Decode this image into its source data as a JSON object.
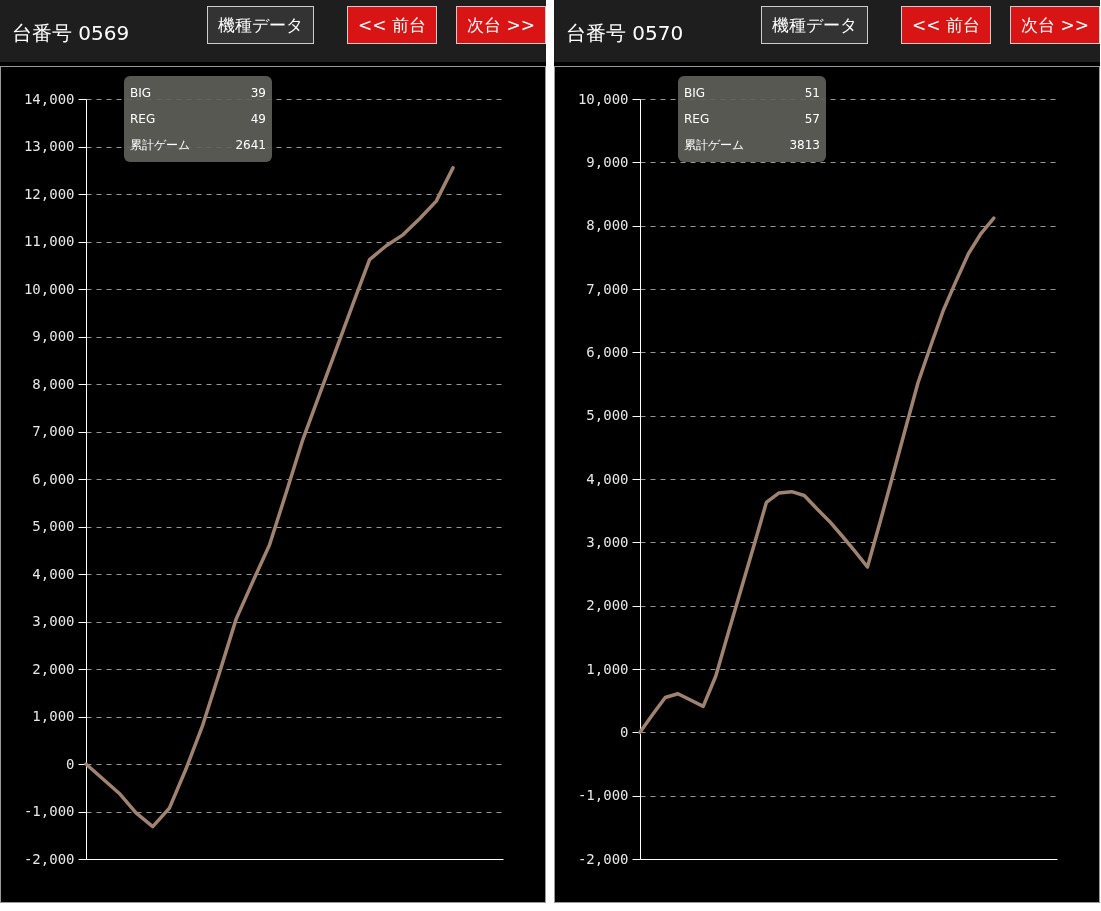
{
  "chart_data": [
    {
      "type": "line",
      "title": "台番号 0569",
      "annotations": [
        "機種データ",
        "<< 前台",
        "次台 >>",
        "BIG",
        "39",
        "REG",
        "49",
        "累計ゲーム",
        "2641"
      ],
      "categories": [
        null,
        null,
        null,
        null,
        null,
        null,
        null,
        null,
        null,
        null,
        null,
        null,
        null,
        null,
        null,
        null,
        null,
        null,
        null,
        null,
        null,
        null,
        null,
        null,
        null,
        null
      ],
      "series": [
        {
          "color": "#a08270",
          "values": [
            0,
            -310,
            -620,
            -1030,
            -1320,
            -930,
            -100,
            820,
            1920,
            3050,
            3840,
            4610,
            5710,
            6830,
            7780,
            8730,
            9680,
            10620,
            10910,
            11140,
            11480,
            11850,
            12550,
            null,
            null,
            null
          ]
        }
      ],
      "ylim": [
        -2000,
        14000
      ],
      "yticks": [
        {
          "value": -2000,
          "label": "-2,000"
        },
        {
          "value": -1000,
          "label": "-1,000"
        },
        0,
        {
          "value": 1000,
          "label": "1,000"
        },
        {
          "value": 2000,
          "label": "2,000"
        },
        {
          "value": 3000,
          "label": "3,000"
        },
        {
          "value": 4000,
          "label": "4,000"
        },
        {
          "value": 5000,
          "label": "5,000"
        },
        {
          "value": 6000,
          "label": "6,000"
        },
        {
          "value": 7000,
          "label": "7,000"
        },
        {
          "value": 8000,
          "label": "8,000"
        },
        {
          "value": 9000,
          "label": "9,000"
        },
        {
          "value": 10000,
          "label": "10,000"
        },
        {
          "value": 11000,
          "label": "11,000"
        },
        {
          "value": 12000,
          "label": "12,000"
        },
        {
          "value": 13000,
          "label": "13,000"
        },
        {
          "value": 14000,
          "label": "14,000"
        }
      ],
      "tick_labels": "y",
      "grid": "y",
      "line_style": "solid"
    },
    {
      "type": "line",
      "title": "台番号 0570",
      "annotations": [
        "機種データ",
        "<< 前台",
        "次台 >>",
        "BIG",
        "51",
        "REG",
        "57",
        "累計ゲーム",
        "3813"
      ],
      "categories": [
        null,
        null,
        null,
        null,
        null,
        null,
        null,
        null,
        null,
        null,
        null,
        null,
        null,
        null,
        null,
        null,
        null,
        null,
        null,
        null,
        null,
        null,
        null,
        null,
        null,
        null,
        null,
        null,
        null,
        null,
        null,
        null,
        null,
        null
      ],
      "series": [
        {
          "color": "#a08270",
          "values": [
            0,
            280,
            550,
            610,
            510,
            410,
            890,
            1580,
            2260,
            2940,
            3630,
            3780,
            3800,
            3740,
            3530,
            3330,
            3100,
            2860,
            2610,
            3320,
            4050,
            4790,
            5520,
            6100,
            6660,
            7120,
            7560,
            7880,
            8120,
            null,
            null,
            null,
            null,
            null
          ]
        }
      ],
      "ylim": [
        -2000,
        10000
      ],
      "yticks": [
        {
          "value": -2000,
          "label": "-2,000"
        },
        {
          "value": -1000,
          "label": "-1,000"
        },
        0,
        {
          "value": 1000,
          "label": "1,000"
        },
        {
          "value": 2000,
          "label": "2,000"
        },
        {
          "value": 3000,
          "label": "3,000"
        },
        {
          "value": 4000,
          "label": "4,000"
        },
        {
          "value": 5000,
          "label": "5,000"
        },
        {
          "value": 6000,
          "label": "6,000"
        },
        {
          "value": 7000,
          "label": "7,000"
        },
        {
          "value": 8000,
          "label": "8,000"
        },
        {
          "value": 9000,
          "label": "9,000"
        },
        {
          "value": 10000,
          "label": "10,000"
        }
      ],
      "tick_labels": "y",
      "grid": "y",
      "line_style": "solid"
    }
  ]
}
